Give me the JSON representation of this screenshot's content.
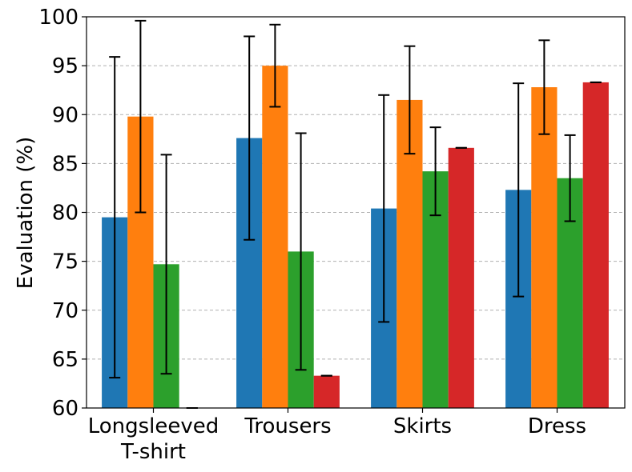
{
  "chart_data": {
    "type": "bar",
    "title": "",
    "xlabel": "",
    "ylabel": "Evaluation (%)",
    "ylim": [
      60,
      100
    ],
    "yticks": [
      60,
      65,
      70,
      75,
      80,
      85,
      90,
      95,
      100
    ],
    "ytick_labels": [
      "60",
      "65",
      "70",
      "75",
      "80",
      "85",
      "90",
      "95",
      "100"
    ],
    "grid": "y-dashed",
    "categories": [
      {
        "line1": "Longsleeved",
        "line2": "T-shirt"
      },
      {
        "line1": "Trousers",
        "line2": ""
      },
      {
        "line1": "Skirts",
        "line2": ""
      },
      {
        "line1": "Dress",
        "line2": ""
      }
    ],
    "series": [
      {
        "color": "#1f77b4",
        "values": [
          79.5,
          87.6,
          80.4,
          82.3
        ],
        "errors": [
          16.4,
          10.4,
          11.6,
          10.9
        ]
      },
      {
        "color": "#ff7f0e",
        "values": [
          89.8,
          95.0,
          91.5,
          92.8
        ],
        "errors": [
          9.8,
          4.2,
          5.5,
          4.8
        ]
      },
      {
        "color": "#2ca02c",
        "values": [
          74.7,
          76.0,
          84.2,
          83.5
        ],
        "errors": [
          11.2,
          12.1,
          4.5,
          4.4
        ]
      },
      {
        "color": "#d62728",
        "values": [
          60.0,
          63.3,
          86.6,
          93.3
        ],
        "errors": [
          0.0,
          0.0,
          0.0,
          0.0
        ]
      }
    ]
  }
}
